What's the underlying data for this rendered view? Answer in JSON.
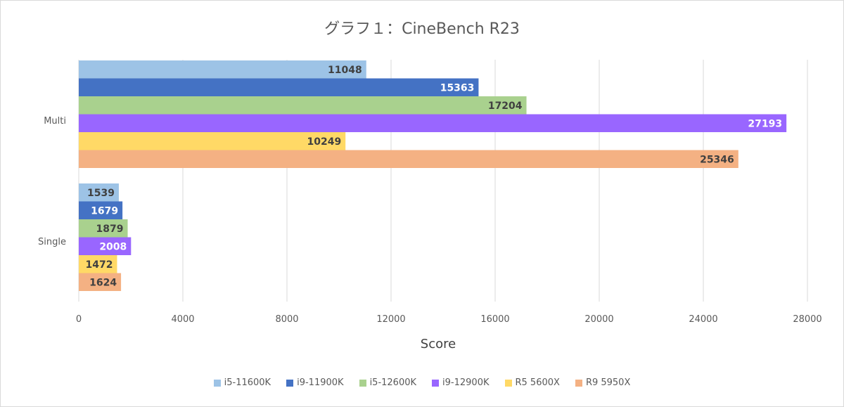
{
  "chart_data": {
    "type": "bar",
    "orientation": "horizontal",
    "title": "グラフ１：CineBench R23",
    "xlabel": "Score",
    "ylabel": "",
    "xlim": [
      0,
      28000
    ],
    "xticks": [
      0,
      4000,
      8000,
      12000,
      16000,
      20000,
      24000,
      28000
    ],
    "categories": [
      "Multi",
      "Single"
    ],
    "grid": true,
    "legend_position": "bottom",
    "series": [
      {
        "name": "i5-11600K",
        "color": "#9dc3e6",
        "label_color": "#404040",
        "values": [
          11048,
          1539
        ]
      },
      {
        "name": "i9-11900K",
        "color": "#4472c4",
        "label_color": "#ffffff",
        "values": [
          15363,
          1679
        ]
      },
      {
        "name": "i5-12600K",
        "color": "#a9d18e",
        "label_color": "#404040",
        "values": [
          17204,
          1879
        ]
      },
      {
        "name": "i9-12900K",
        "color": "#9966ff",
        "label_color": "#ffffff",
        "values": [
          27193,
          2008
        ]
      },
      {
        "name": "R5 5600X",
        "color": "#ffd966",
        "label_color": "#404040",
        "values": [
          10249,
          1472
        ]
      },
      {
        "name": "R9 5950X",
        "color": "#f4b183",
        "label_color": "#404040",
        "values": [
          25346,
          1624
        ]
      }
    ]
  }
}
